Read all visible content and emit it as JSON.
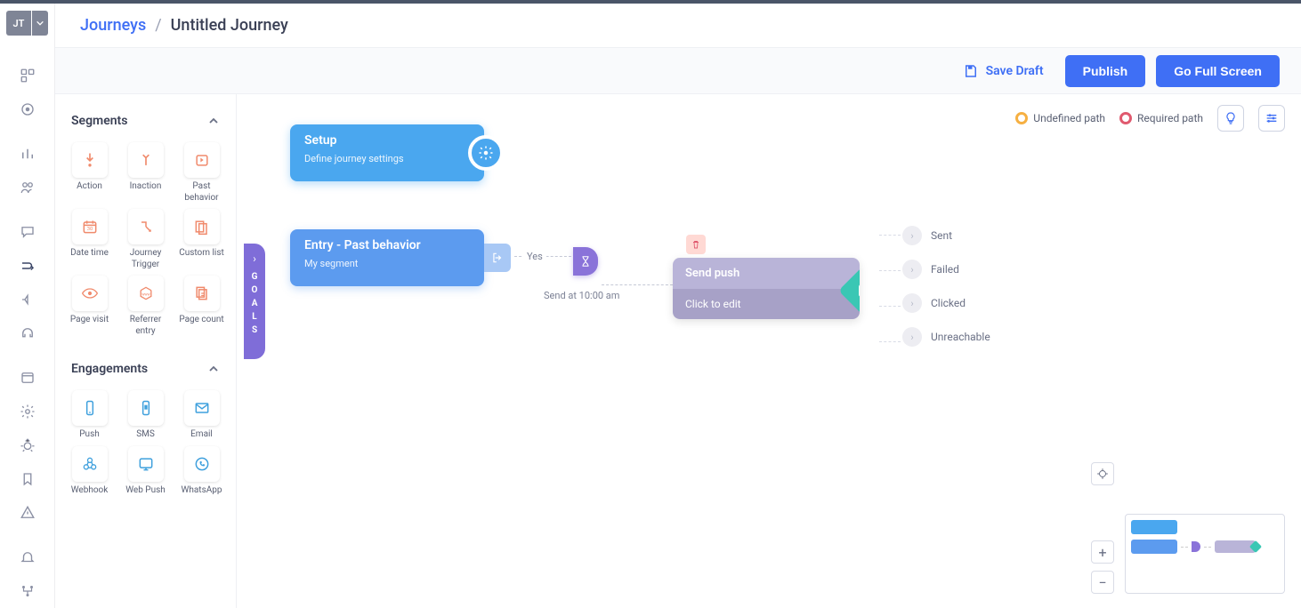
{
  "avatar": {
    "initials": "JT"
  },
  "breadcrumb": {
    "root": "Journeys",
    "current": "Untitled Journey"
  },
  "actions": {
    "save_draft": "Save Draft",
    "publish": "Publish",
    "fullscreen": "Go Full Screen"
  },
  "legend": {
    "undefined": "Undefined path",
    "required": "Required path",
    "colors": {
      "undefined": "#f6b042",
      "required": "#e05a6f"
    }
  },
  "palette": {
    "segments": {
      "title": "Segments",
      "expanded": true,
      "items": [
        {
          "key": "action",
          "label": "Action",
          "color": "#f08a6c"
        },
        {
          "key": "inaction",
          "label": "Inaction",
          "color": "#f08a6c"
        },
        {
          "key": "past-behavior",
          "label": "Past behavior",
          "color": "#f08a6c"
        },
        {
          "key": "date-time",
          "label": "Date time",
          "color": "#f08a6c"
        },
        {
          "key": "journey-trigger",
          "label": "Journey Trigger",
          "color": "#f08a6c"
        },
        {
          "key": "custom-list",
          "label": "Custom list",
          "color": "#f08a6c"
        },
        {
          "key": "page-visit",
          "label": "Page visit",
          "color": "#f08a6c"
        },
        {
          "key": "referrer-entry",
          "label": "Referrer entry",
          "color": "#f08a6c"
        },
        {
          "key": "page-count",
          "label": "Page count",
          "color": "#f08a6c"
        }
      ]
    },
    "engagements": {
      "title": "Engagements",
      "expanded": true,
      "items": [
        {
          "key": "push",
          "label": "Push",
          "color": "#3fa0dd"
        },
        {
          "key": "sms",
          "label": "SMS",
          "color": "#3fa0dd"
        },
        {
          "key": "email",
          "label": "Email",
          "color": "#3fa0dd"
        },
        {
          "key": "webhook",
          "label": "Webhook",
          "color": "#3fa0dd"
        },
        {
          "key": "web-push",
          "label": "Web Push",
          "color": "#3fa0dd"
        },
        {
          "key": "whatsapp",
          "label": "WhatsApp",
          "color": "#3fa0dd"
        }
      ]
    }
  },
  "goals_tab": "GOALS",
  "nodes": {
    "setup": {
      "title": "Setup",
      "subtitle": "Define journey settings",
      "bg": "#4aa7ef"
    },
    "entry": {
      "title": "Entry - Past behavior",
      "subtitle": "My segment",
      "bg": "#5c9bef"
    },
    "edge_yes": "Yes",
    "wait": {
      "label": "Send at 10:00 am",
      "bg": "#8a73d9"
    },
    "push": {
      "title": "Send push",
      "subtitle": "Click to edit",
      "top_bg": "#b9b4d8",
      "bot_bg": "#a7a1c7",
      "diamond_bg": "#3ac7b4"
    },
    "outcomes": [
      "Sent",
      "Failed",
      "Clicked",
      "Unreachable"
    ]
  },
  "zoom": {
    "plus": "+",
    "minus": "−"
  },
  "colors": {
    "primary": "#3f6ff5",
    "rail_icon": "#8a8fa3"
  }
}
